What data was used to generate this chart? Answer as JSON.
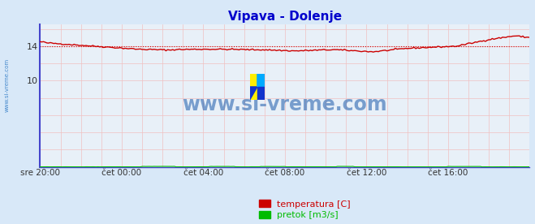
{
  "title": "Vipava - Dolenje",
  "title_color": "#0000cc",
  "bg_color": "#d8e8f8",
  "plot_bg_color": "#e8f0f8",
  "hline_y": 14.0,
  "hline_color": "#cc0000",
  "ylim": [
    0,
    16.5
  ],
  "temp_color": "#cc0000",
  "flow_color": "#00bb00",
  "watermark": "www.si-vreme.com",
  "watermark_color": "#1a5aaa",
  "left_text": "www.si-vreme.com",
  "legend_temp": "temperatura [C]",
  "legend_flow": "pretok [m3/s]",
  "xlabel_ticks": [
    "sre 20:00",
    "čet 00:00",
    "čet 04:00",
    "čet 08:00",
    "čet 12:00",
    "čet 16:00"
  ],
  "xtick_pos": [
    0,
    48,
    96,
    144,
    192,
    240
  ],
  "n_points": 289
}
